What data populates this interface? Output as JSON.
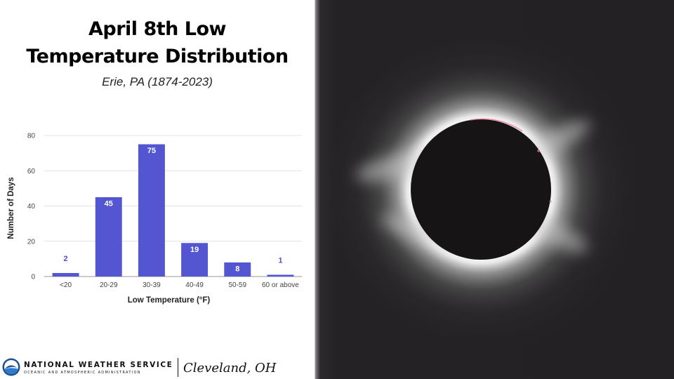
{
  "title_lines": [
    "April 8th Low",
    "Temperature Distribution"
  ],
  "subtitle": "Erie, PA (1874-2023)",
  "chart_data": {
    "type": "bar",
    "title": "April 8th Low Temperature Distribution",
    "subtitle": "Erie, PA (1874-2023)",
    "categories": [
      "<20",
      "20-29",
      "30-39",
      "40-49",
      "50-59",
      "60 or above"
    ],
    "values": [
      2,
      45,
      75,
      19,
      8,
      1
    ],
    "data_labels": [
      "2",
      "45",
      "75",
      "19",
      "8",
      "1"
    ],
    "xlabel": "Low Temperature (°F)",
    "ylabel": "Number of Days",
    "ylim": [
      0,
      80
    ],
    "yticks": [
      "0",
      "20",
      "40",
      "60",
      "80"
    ],
    "grid": true,
    "bar_color": "#5355d1",
    "gridline_color": "#e3e3e3"
  },
  "footer": {
    "agency_name": "NATIONAL WEATHER SERVICE",
    "agency_sub": "OCEANIC AND ATMOSPHERIC ADMINISTRATION",
    "office": "Cleveland, OH",
    "logo_icon": "noaa-logo-icon"
  },
  "photo": {
    "subject": "total-solar-eclipse-icon",
    "background_color": "#242224",
    "moon_color": "#171416"
  }
}
